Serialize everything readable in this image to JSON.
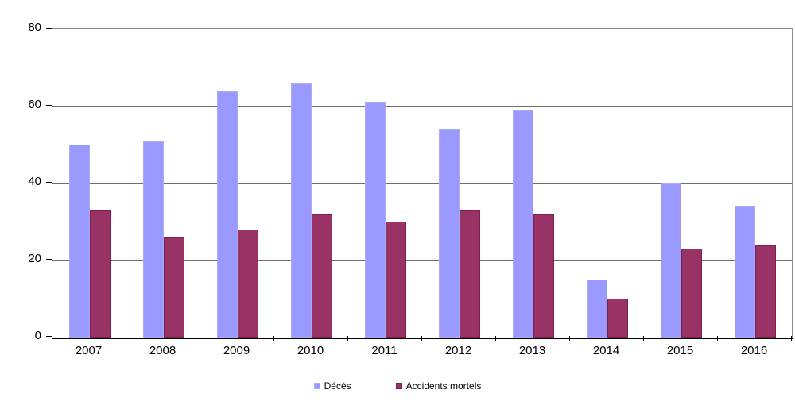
{
  "chart_data": {
    "type": "bar",
    "title": "",
    "categories": [
      "2007",
      "2008",
      "2009",
      "2010",
      "2011",
      "2012",
      "2013",
      "2014",
      "2015",
      "2016"
    ],
    "series": [
      {
        "name": "Décès",
        "color": "#9999ff",
        "border_color": "#aaaaf0",
        "values": [
          50,
          51,
          64,
          66,
          61,
          54,
          59,
          15,
          40,
          34
        ]
      },
      {
        "name": "Accidents mortels",
        "color": "#993366",
        "border_color": "#7d1f4e",
        "values": [
          33,
          26,
          28,
          32,
          30,
          33,
          32,
          10,
          23,
          24
        ]
      }
    ],
    "ylim": [
      0,
      80
    ],
    "yticks": [
      0,
      20,
      40,
      60,
      80
    ],
    "grid": true,
    "gridline_color": "#6e6e6e",
    "legend_position": "bottom"
  }
}
